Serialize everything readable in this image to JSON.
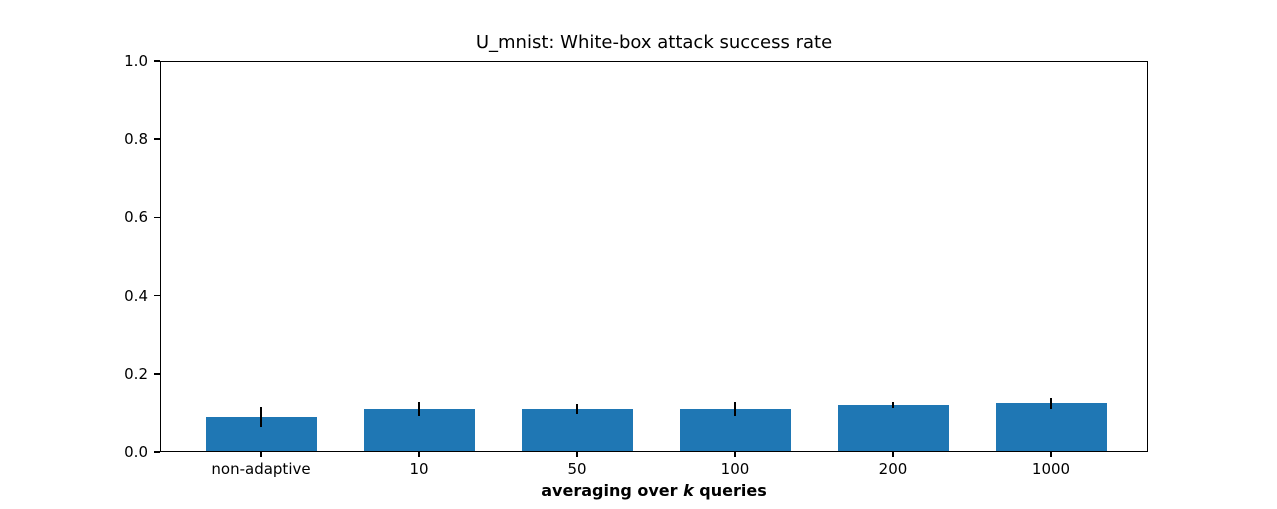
{
  "chart_data": {
    "type": "bar",
    "title": "U_mnist: White-box attack success rate",
    "categories": [
      "non-adaptive",
      "10",
      "50",
      "100",
      "200",
      "1000"
    ],
    "values": [
      0.09,
      0.11,
      0.11,
      0.11,
      0.12,
      0.125
    ],
    "errors": [
      0.025,
      0.018,
      0.013,
      0.017,
      0.008,
      0.014
    ],
    "xlabel": "averaging over k queries",
    "xlabel_parts": {
      "prefix": "averaging over ",
      "var": "k",
      "suffix": " queries"
    },
    "ylabel": "",
    "ylim": [
      0.0,
      1.0
    ],
    "yticks": [
      "0.0",
      "0.2",
      "0.4",
      "0.6",
      "0.8",
      "1.0"
    ],
    "grid": false,
    "legend": null,
    "bar_color": "#1f77b4",
    "errorbar_color": "#000000",
    "frame_color": "#000000",
    "background_color": "#ffffff"
  }
}
